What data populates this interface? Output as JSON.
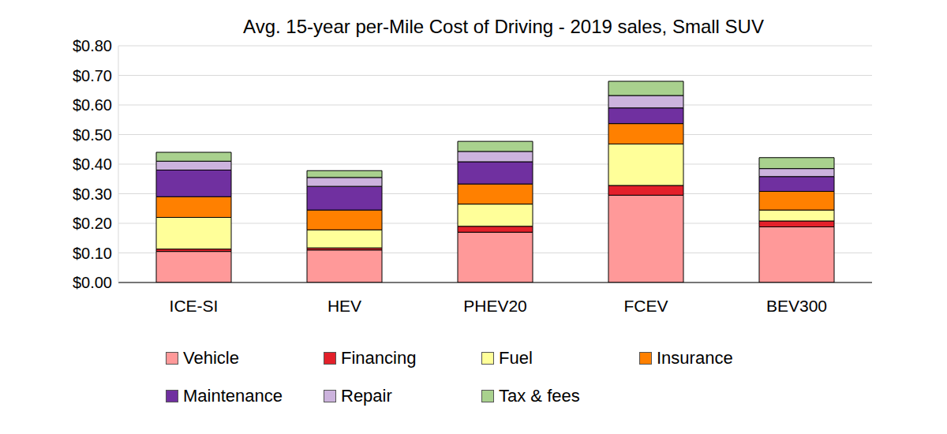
{
  "chart_data": {
    "type": "bar",
    "title": "Avg. 15-year per-Mile Cost of Driving - 2019 sales, Small SUV",
    "categories": [
      "ICE-SI",
      "HEV",
      "PHEV20",
      "FCEV",
      "BEV300"
    ],
    "series": [
      {
        "name": "Vehicle",
        "color": "#ff9999",
        "values": [
          0.105,
          0.11,
          0.17,
          0.295,
          0.188
        ]
      },
      {
        "name": "Financing",
        "color": "#e3202a",
        "values": [
          0.008,
          0.007,
          0.02,
          0.033,
          0.02
        ]
      },
      {
        "name": "Fuel",
        "color": "#ffff99",
        "values": [
          0.107,
          0.061,
          0.075,
          0.14,
          0.037
        ]
      },
      {
        "name": "Insurance",
        "color": "#ff8000",
        "values": [
          0.07,
          0.067,
          0.068,
          0.069,
          0.063
        ]
      },
      {
        "name": "Maintenance",
        "color": "#7030a0",
        "values": [
          0.09,
          0.08,
          0.075,
          0.053,
          0.05
        ]
      },
      {
        "name": "Repair",
        "color": "#ccb3dd",
        "values": [
          0.03,
          0.03,
          0.035,
          0.042,
          0.027
        ]
      },
      {
        "name": "Tax & fees",
        "color": "#a9d18e",
        "values": [
          0.03,
          0.023,
          0.034,
          0.048,
          0.037
        ]
      }
    ],
    "ylim": [
      0,
      0.8
    ],
    "yticks": [
      {
        "value": 0,
        "label": "$0.00"
      },
      {
        "value": 0.1,
        "label": "$0.10"
      },
      {
        "value": 0.2,
        "label": "$0.20"
      },
      {
        "value": 0.3,
        "label": "$0.30"
      },
      {
        "value": 0.4,
        "label": "$0.40"
      },
      {
        "value": 0.5,
        "label": "$0.50"
      },
      {
        "value": 0.6,
        "label": "$0.60"
      },
      {
        "value": 0.7,
        "label": "$0.70"
      },
      {
        "value": 0.8,
        "label": "$0.80"
      }
    ],
    "stacked": true,
    "grid": true,
    "legend": "bottom"
  }
}
